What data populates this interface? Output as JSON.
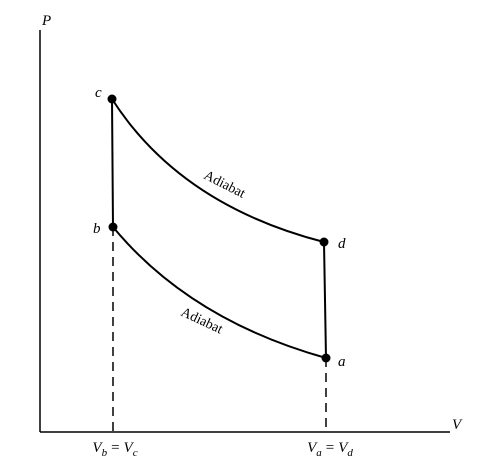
{
  "axes": {
    "y_label": "P",
    "x_label": "V"
  },
  "nodes": [
    {
      "label": "c"
    },
    {
      "label": "b"
    },
    {
      "label": "d"
    },
    {
      "label": "a"
    }
  ],
  "edges": [
    {
      "label": "Adiabat"
    },
    {
      "label": "Adiabat"
    }
  ],
  "x_ticks": [
    {
      "left": {
        "symbol": "V",
        "subscript": "b"
      },
      "relation": "=",
      "right": {
        "symbol": "V",
        "subscript": "c"
      }
    },
    {
      "left": {
        "symbol": "V",
        "subscript": "a"
      },
      "relation": "=",
      "right": {
        "symbol": "V",
        "subscript": "d"
      }
    }
  ]
}
